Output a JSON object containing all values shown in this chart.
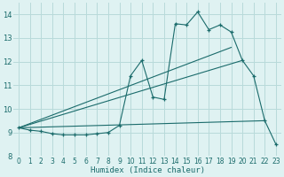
{
  "xlabel": "Humidex (Indice chaleur)",
  "bg_color": "#dff2f2",
  "grid_color": "#b8dada",
  "line_color": "#1a6b6b",
  "xlim": [
    -0.5,
    23.5
  ],
  "ylim": [
    8.0,
    14.5
  ],
  "yticks": [
    8,
    9,
    10,
    11,
    12,
    13,
    14
  ],
  "xticks": [
    0,
    1,
    2,
    3,
    4,
    5,
    6,
    7,
    8,
    9,
    10,
    11,
    12,
    13,
    14,
    15,
    16,
    17,
    18,
    19,
    20,
    21,
    22,
    23
  ],
  "main_x": [
    0,
    1,
    2,
    3,
    4,
    5,
    6,
    7,
    8,
    9,
    10,
    11,
    12,
    13,
    14,
    15,
    16,
    17,
    18,
    19,
    20,
    21,
    22,
    23
  ],
  "main_y": [
    9.2,
    9.1,
    9.05,
    8.95,
    8.9,
    8.9,
    8.9,
    8.95,
    9.0,
    9.3,
    11.4,
    12.05,
    10.5,
    10.4,
    13.6,
    13.55,
    14.1,
    13.35,
    13.55,
    13.25,
    12.05,
    11.4,
    9.5,
    8.5
  ],
  "line1_x": [
    0,
    19
  ],
  "line1_y": [
    9.2,
    12.6
  ],
  "line2_x": [
    0,
    20
  ],
  "line2_y": [
    9.2,
    12.05
  ],
  "line3_x": [
    0,
    22
  ],
  "line3_y": [
    9.2,
    9.5
  ],
  "marker": "+"
}
